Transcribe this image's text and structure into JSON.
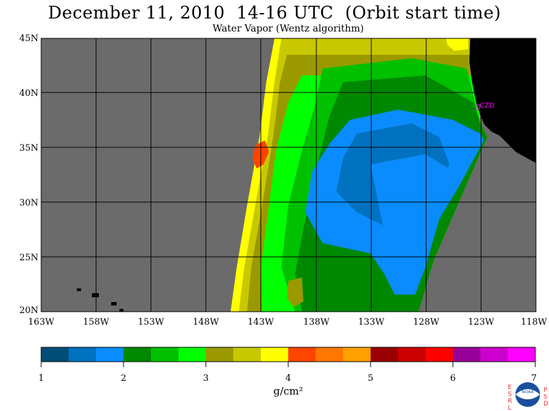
{
  "title": "December 11, 2010  14-16 UTC  (Orbit start time)",
  "subtitle": "Water Vapor (Wentz algorithm)",
  "map": {
    "lat_labels": [
      "45N",
      "40N",
      "35N",
      "30N",
      "25N",
      "20N"
    ],
    "lon_labels": [
      "163W",
      "158W",
      "153W",
      "148W",
      "143W",
      "138W",
      "133W",
      "128W",
      "123W",
      "118W"
    ],
    "station_label": "CZD",
    "colors": {
      "land": "#000000",
      "no_data": "#6b6b6b",
      "grid": "#000000",
      "station": "#ff00ff"
    }
  },
  "colorbar": {
    "tick_labels": [
      "1",
      "2",
      "3",
      "4",
      "5",
      "6",
      "7"
    ],
    "unit": "g/cm²",
    "colors": [
      "#004e78",
      "#0072c0",
      "#0a8cff",
      "#008800",
      "#00c000",
      "#00ff00",
      "#9a9a00",
      "#c8c800",
      "#ffff00",
      "#ff4400",
      "#ff7700",
      "#ffa000",
      "#9a0000",
      "#cc0000",
      "#ff0000",
      "#990099",
      "#cc00cc",
      "#ff00ff"
    ]
  },
  "logo": {
    "left_letters": [
      "E",
      "S",
      "R",
      "L"
    ],
    "right_letters": [
      "P",
      "S",
      "D"
    ],
    "center_text": "NOAA"
  }
}
